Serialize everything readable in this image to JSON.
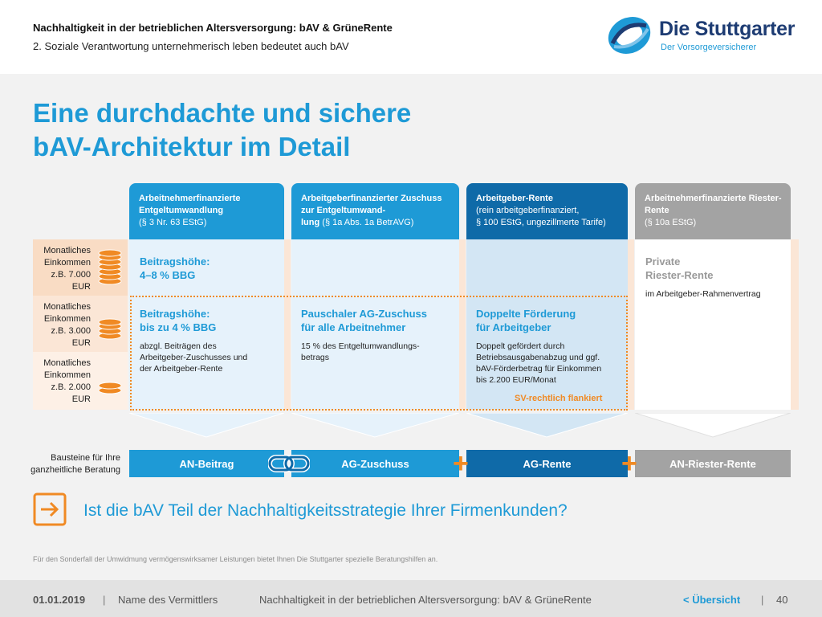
{
  "header": {
    "title": "Nachhaltigkeit in der betrieblichen Altersversorgung: bAV & GrüneRente",
    "subtitle": "2. Soziale Verantwortung unternehmerisch leben bedeutet auch bAV",
    "logo_name": "Die Stuttgarter",
    "logo_tagline": "Der Vorsorgeversicherer"
  },
  "title_line1": "Eine durchdachte und sichere",
  "title_line2": "bAV-Architektur im Detail",
  "columns": [
    {
      "bold": "Arbeitnehmerfinanzierte Entgeltumwandlung",
      "sub": "(§ 3 Nr. 63 EStG)"
    },
    {
      "bold": "Arbeitgeberfinanzierter Zuschuss zur Entgeltumwand-",
      "bold2": "lung",
      "sub": "(§ 1a Abs. 1a BetrAVG)"
    },
    {
      "bold": "Arbeitgeber-Rente",
      "sub": "(rein arbeitgeberfinanziert,",
      "sub2": "§ 100 EStG, ungezillmerte Tarife)"
    },
    {
      "bold": "Arbeitnehmerfinanzierte Riester-Rente",
      "sub": "(§ 10a EStG)"
    }
  ],
  "rows": [
    {
      "l1": "Monatliches",
      "l2": "Einkommen",
      "l3": "z.B. 7.000",
      "l4": "EUR"
    },
    {
      "l1": "Monatliches",
      "l2": "Einkommen",
      "l3": "z.B. 3.000",
      "l4": "EUR"
    },
    {
      "l1": "Monatliches",
      "l2": "Einkommen",
      "l3": "z.B. 2.000",
      "l4": "EUR"
    }
  ],
  "cells": {
    "c1_top_title1": "Beitragshöhe:",
    "c1_top_title2": "4–8 % BBG",
    "c1_mid_title1": "Beitragshöhe:",
    "c1_mid_title2": "bis zu 4 % BBG",
    "c1_mid_text1": "abzgl. Beiträgen des",
    "c1_mid_text2": "Arbeitgeber-Zuschusses und",
    "c1_mid_text3": "der Arbeitgeber-Rente",
    "c2_title1": "Pauschaler AG-Zuschuss",
    "c2_title2": "für alle Arbeitnehmer",
    "c2_text1": "15 % des Entgeltumwandlungs-",
    "c2_text2": "betrags",
    "c3_title1": "Doppelte Förderung",
    "c3_title2": "für Arbeitgeber",
    "c3_text1": "Doppelt gefördert durch",
    "c3_text2": "Betriebsausgabenabzug und ggf.",
    "c3_text3": "bAV-Förderbetrag für Einkommen",
    "c3_text4": "bis 2.200 EUR/Monat",
    "c4_title1": "Private",
    "c4_title2": "Riester-Rente",
    "c4_text": "im Arbeitgeber-Rahmenvertrag",
    "sv_label": "SV-rechtlich flankiert"
  },
  "bausteine_l1": "Bausteine für Ihre",
  "bausteine_l2": "ganzheitliche Beratung",
  "blocks": [
    "AN-Beitrag",
    "AG-Zuschuss",
    "AG-Rente",
    "AN-Riester-Rente"
  ],
  "plus": "+",
  "cta": "Ist die bAV Teil der Nachhaltigkeitsstrategie Ihrer Firmenkunden?",
  "footnote": "Für den Sonderfall der Umwidmung vermögenswirksamer Leistungen bietet Ihnen Die Stuttgarter spezielle Beratungshilfen an.",
  "footer": {
    "date": "01.01.2019",
    "sep": "|",
    "name": "Name des Vermittlers",
    "topic": "Nachhaltigkeit in der betrieblichen Altersversorgung: bAV & GrüneRente",
    "overview": "< Übersicht",
    "page": "40"
  },
  "colors": {
    "blue": "#1e9ad6",
    "dark_blue": "#0f6aa8",
    "gray": "#a3a3a3",
    "orange": "#f08a24",
    "navy": "#1e3c73"
  }
}
